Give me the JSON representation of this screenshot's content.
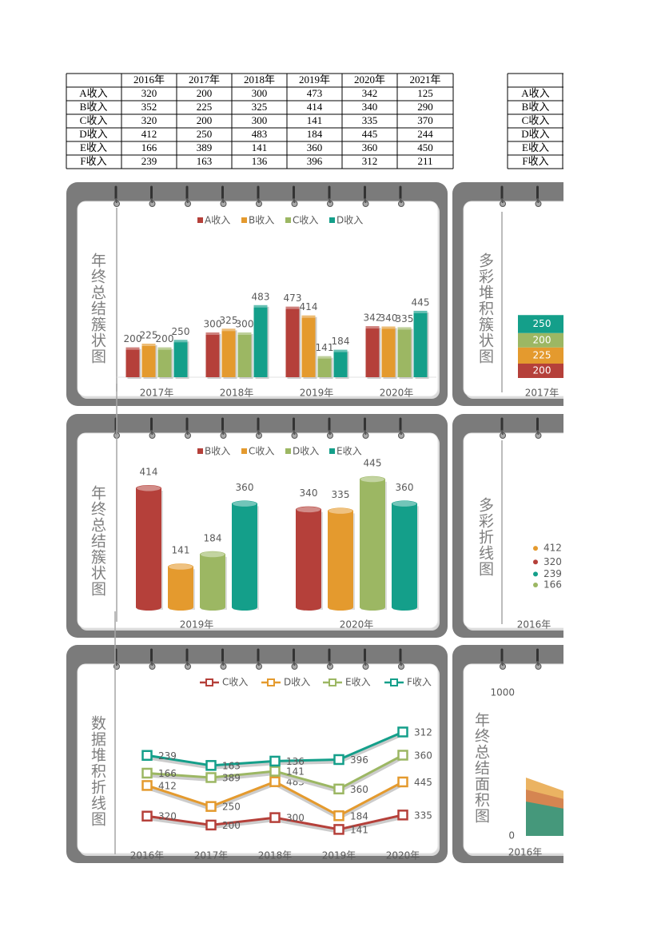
{
  "table": {
    "columns": [
      "2016年",
      "2017年",
      "2018年",
      "2019年",
      "2020年",
      "2021年"
    ],
    "rows": [
      {
        "label": "A收入",
        "values": [
          320,
          200,
          300,
          473,
          342,
          125
        ]
      },
      {
        "label": "B收入",
        "values": [
          352,
          225,
          325,
          414,
          340,
          290
        ]
      },
      {
        "label": "C收入",
        "values": [
          320,
          200,
          300,
          141,
          335,
          370
        ]
      },
      {
        "label": "D收入",
        "values": [
          412,
          250,
          483,
          184,
          445,
          244
        ]
      },
      {
        "label": "E收入",
        "values": [
          166,
          389,
          141,
          360,
          360,
          450
        ]
      },
      {
        "label": "F收入",
        "values": [
          239,
          163,
          136,
          396,
          312,
          211
        ]
      }
    ]
  },
  "table2": {
    "rows": [
      "A收入",
      "B收入",
      "C收入",
      "D收入",
      "E收入",
      "F收入"
    ]
  },
  "chart_data": [
    {
      "type": "bar",
      "title": "年终总结簇状图",
      "categories": [
        "2017年",
        "2018年",
        "2019年",
        "2020年"
      ],
      "series": [
        {
          "name": "A收入",
          "color": "#b5403a",
          "values": [
            200,
            300,
            473,
            342
          ]
        },
        {
          "name": "B收入",
          "color": "#e49a2e",
          "values": [
            225,
            325,
            414,
            340
          ]
        },
        {
          "name": "C收入",
          "color": "#9cb763",
          "values": [
            200,
            300,
            141,
            335
          ]
        },
        {
          "name": "D收入",
          "color": "#149f8a",
          "values": [
            250,
            483,
            184,
            445
          ]
        }
      ],
      "ylim": [
        0,
        600
      ],
      "legend": "top"
    },
    {
      "type": "stacked_bar",
      "title": "多彩堆积簇状图",
      "categories": [
        "2017年"
      ],
      "series": [
        {
          "color": "#b5403a",
          "values": [
            200
          ]
        },
        {
          "color": "#e49a2e",
          "values": [
            225
          ]
        },
        {
          "color": "#9cb763",
          "values": [
            200
          ]
        },
        {
          "color": "#149f8a",
          "values": [
            250
          ]
        }
      ],
      "ylim": [
        0,
        1200
      ]
    },
    {
      "type": "cylinder",
      "title": "年终总结簇状图",
      "categories": [
        "2019年",
        "2020年"
      ],
      "series": [
        {
          "name": "B收入",
          "color": "#b5403a",
          "values": [
            414,
            340
          ]
        },
        {
          "name": "C收入",
          "color": "#e49a2e",
          "values": [
            141,
            335
          ]
        },
        {
          "name": "D收入",
          "color": "#9cb763",
          "values": [
            184,
            445
          ]
        },
        {
          "name": "E收入",
          "color": "#149f8a",
          "values": [
            360,
            360
          ]
        }
      ],
      "ylim": [
        0,
        500
      ],
      "legend": "top"
    },
    {
      "type": "line",
      "title": "多彩折线图",
      "categories": [
        "2016年"
      ],
      "series": [
        {
          "color": "#e49a2e",
          "values": [
            412
          ]
        },
        {
          "color": "#b5403a",
          "values": [
            320
          ]
        },
        {
          "color": "#149f8a",
          "values": [
            239
          ]
        },
        {
          "color": "#9cb763",
          "values": [
            166
          ]
        }
      ],
      "ylim": [
        0,
        600
      ]
    },
    {
      "type": "stacked_line",
      "title": "数据堆积折线图",
      "categories": [
        "2016年",
        "2017年",
        "2018年",
        "2019年",
        "2020年"
      ],
      "series": [
        {
          "name": "C收入",
          "color": "#b5403a",
          "values": [
            320,
            200,
            300,
            141,
            335
          ]
        },
        {
          "name": "D收入",
          "color": "#e49a2e",
          "values": [
            412,
            250,
            483,
            184,
            445
          ]
        },
        {
          "name": "E收入",
          "color": "#9cb763",
          "values": [
            166,
            389,
            141,
            360,
            360
          ]
        },
        {
          "name": "F收入",
          "color": "#149f8a",
          "values": [
            239,
            163,
            136,
            396,
            312
          ]
        }
      ],
      "ylim": [
        0,
        2000
      ],
      "legend": "top"
    },
    {
      "type": "area",
      "title": "年终总结面积图",
      "categories": [
        "2016年"
      ],
      "ylim": [
        0,
        1000
      ],
      "yticks": [
        0,
        1000
      ]
    }
  ]
}
